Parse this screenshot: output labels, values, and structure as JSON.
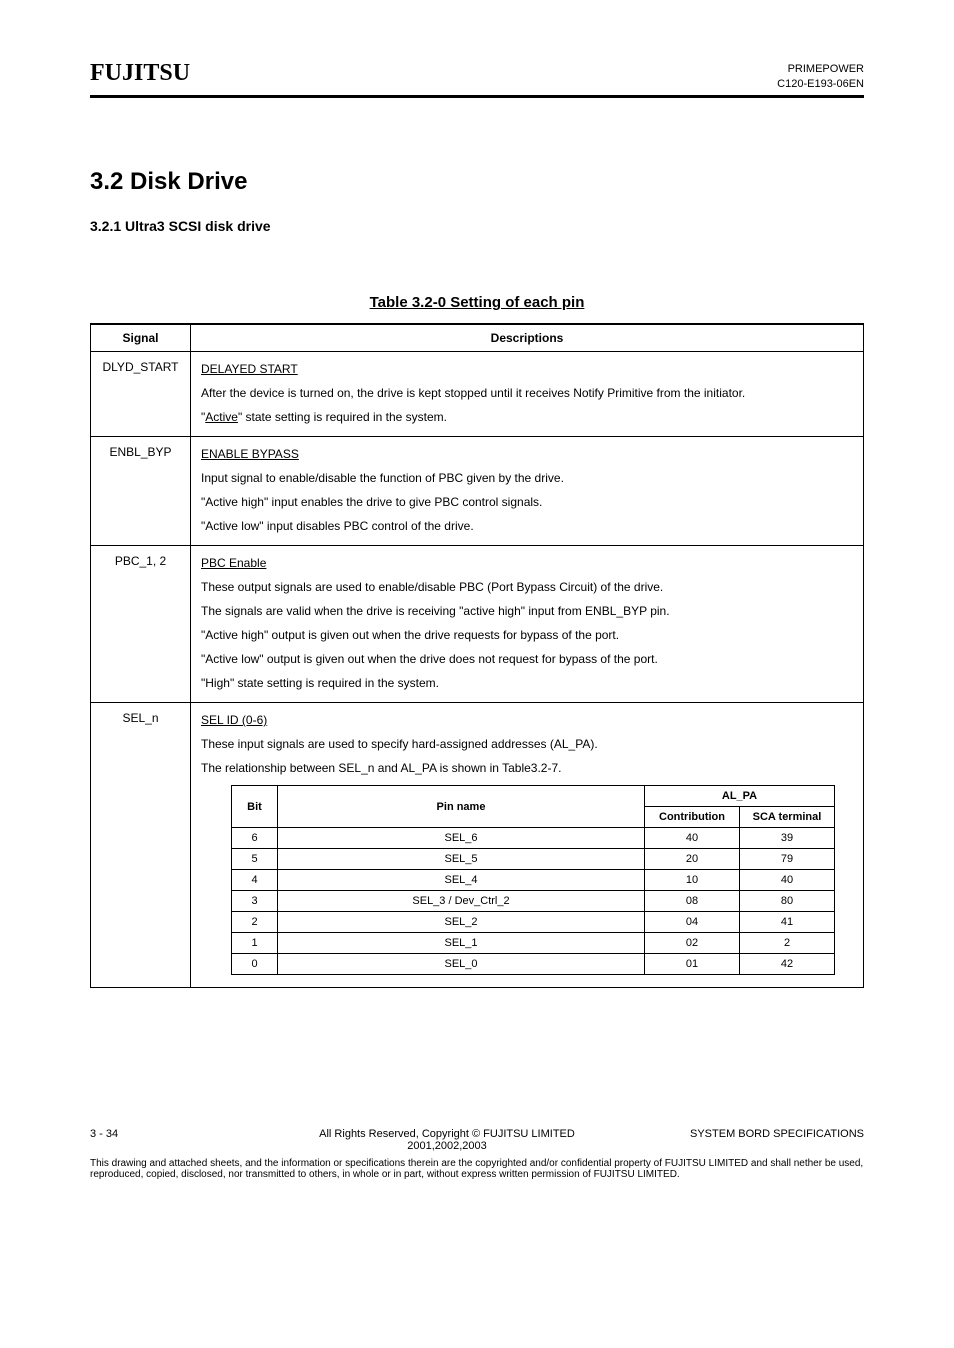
{
  "colors": {
    "text": "#000000",
    "background": "#ffffff",
    "rule": "#000000"
  },
  "header": {
    "brand": "FUJITSU",
    "line1": "PRIMEPOWER",
    "line2": "C120-E193-06EN"
  },
  "title": "3.2 Disk Drive",
  "subtitle": "3.2.1 Ultra3 SCSI disk drive",
  "section_heading": "Table 3.2-0 Setting of each pin",
  "outer": {
    "head": {
      "col1": "Signal",
      "col2": "Descriptions"
    },
    "rows": [
      {
        "label": "DLYD_START",
        "heading": "DELAYED START",
        "paragraphs": [
          "After the device is turned on, the drive is kept stopped until it receives Notify Primitive from the initiator.",
          "\"Active\" state setting is required in the system."
        ]
      },
      {
        "label": "ENBL_BYP",
        "heading": "ENABLE BYPASS",
        "paragraphs": [
          "Input signal to enable/disable the function of PBC given by the drive.",
          "\"Active high\" input enables the drive to give PBC control signals.",
          "\"Active low\" input disables PBC control of the drive."
        ]
      },
      {
        "label": "PBC_1, 2",
        "heading": "PBC Enable",
        "paragraphs": [
          "These output signals are used to enable/disable PBC (Port Bypass Circuit) of the drive.",
          "The signals are valid when the drive is receiving \"active high\" input from ENBL_BYP pin.",
          "\"Active high\" output is given out when the drive requests for bypass of the port.",
          "\"Active low\" output is given out when the drive does not request for bypass of the port.",
          "\"High\" state setting is required in the system."
        ]
      },
      {
        "label": "SEL_n",
        "heading": "SEL ID (0-6)",
        "paragraphs": [
          "These input signals are used to specify hard-assigned addresses (AL_PA).",
          "The relationship between SEL_n and AL_PA is shown in Table3.2-7."
        ],
        "inner_table": {
          "head": {
            "bit": "Bit",
            "pin": "Pin name",
            "alpa_group": "AL_PA",
            "contribution": "Contribution",
            "terminal": "SCA terminal"
          },
          "rows": [
            {
              "bit": "6",
              "pin": "SEL_6",
              "contribution": "40",
              "terminal": "39"
            },
            {
              "bit": "5",
              "pin": "SEL_5",
              "contribution": "20",
              "terminal": "79"
            },
            {
              "bit": "4",
              "pin": "SEL_4",
              "contrib": "10",
              "terminal": "40"
            },
            {
              "bit": "3",
              "pin": "SEL_3 / Dev_Ctrl_2",
              "contribution": "08",
              "terminal": "80"
            },
            {
              "bit": "2",
              "pin": "SEL_2",
              "contribution": "04",
              "terminal": "41"
            },
            {
              "bit": "1",
              "pin": "SEL_1",
              "contribution": "02",
              "terminal": "2"
            },
            {
              "bit": "0",
              "pin": "SEL_0",
              "contribution": "01",
              "terminal": "42"
            }
          ]
        }
      }
    ]
  },
  "footer": {
    "left": "3 - 34",
    "center": "All Rights Reserved, Copyright © FUJITSU LIMITED 2001,2002,2003",
    "right": "SYSTEM BORD SPECIFICATIONS",
    "note": "This drawing and attached sheets, and the information or specifications therein are the copyrighted and/or confidential property of FUJITSU LIMITED and shall nether be used, reproduced, copied, disclosed, nor transmitted to others, in whole or in part, without express written permission of FUJITSU LIMITED."
  }
}
